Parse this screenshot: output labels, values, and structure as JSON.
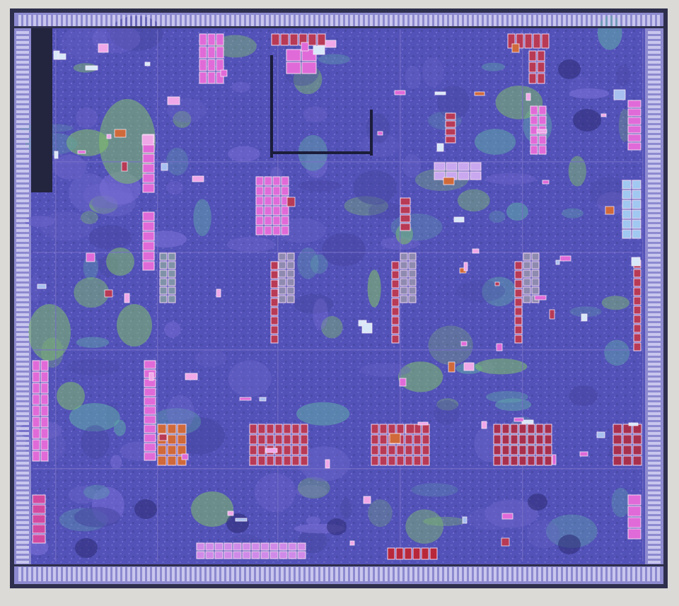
{
  "image": {
    "subject": "die-shot",
    "palette": {
      "background": "#dcdad6",
      "substrate": "#4f4fb4",
      "substrate_light": "#6a64c8",
      "logic_green": "#7fbf6a",
      "logic_teal": "#5fa8a8",
      "sram_pink": "#e06ad8",
      "sram_magenta": "#d24aa0",
      "sram_red": "#b83a55",
      "sram_orange": "#d06a3a",
      "frame_dark": "#2e2f4c",
      "io_ring": "#8d8ad0",
      "grid_line": "#7870c8"
    }
  }
}
